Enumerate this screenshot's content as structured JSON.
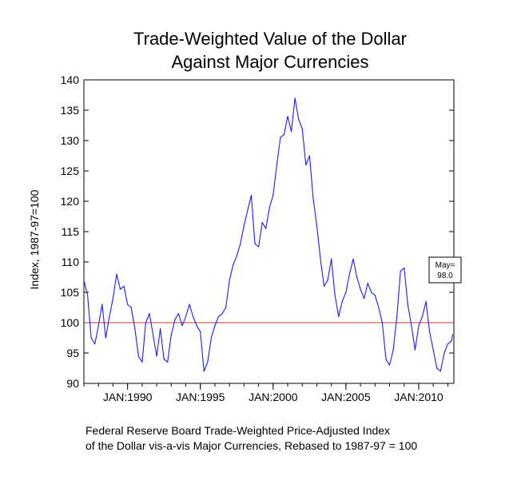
{
  "chart_data": {
    "type": "line",
    "title": "Trade-Weighted Value of the Dollar",
    "subtitle": "Against Major Currencies",
    "ylabel": "Index, 1987-97=100",
    "xlabel": "",
    "ylim": [
      90,
      140
    ],
    "yticks": [
      90,
      95,
      100,
      105,
      110,
      115,
      120,
      125,
      130,
      135,
      140
    ],
    "xlim": [
      "1987-01",
      "2012-06"
    ],
    "xticks": [
      {
        "label": "JAN:1990",
        "date": "1990-01"
      },
      {
        "label": "JAN:1995",
        "date": "1995-01"
      },
      {
        "label": "JAN:2000",
        "date": "2000-01"
      },
      {
        "label": "JAN:2005",
        "date": "2005-01"
      },
      {
        "label": "JAN:2010",
        "date": "2010-01"
      }
    ],
    "reference_line": {
      "value": 100,
      "color": "#c0392b"
    },
    "series": [
      {
        "color": "#1a1aff",
        "x": [
          "1987-01",
          "1987-04",
          "1987-07",
          "1987-10",
          "1988-01",
          "1988-04",
          "1988-07",
          "1988-10",
          "1989-01",
          "1989-04",
          "1989-07",
          "1989-10",
          "1990-01",
          "1990-04",
          "1990-07",
          "1990-10",
          "1991-01",
          "1991-04",
          "1991-07",
          "1991-10",
          "1992-01",
          "1992-04",
          "1992-07",
          "1992-10",
          "1993-01",
          "1993-04",
          "1993-07",
          "1993-10",
          "1994-01",
          "1994-04",
          "1994-07",
          "1994-10",
          "1995-01",
          "1995-04",
          "1995-07",
          "1995-10",
          "1996-01",
          "1996-04",
          "1996-07",
          "1996-10",
          "1997-01",
          "1997-04",
          "1997-07",
          "1997-10",
          "1998-01",
          "1998-04",
          "1998-07",
          "1998-10",
          "1999-01",
          "1999-04",
          "1999-07",
          "1999-10",
          "2000-01",
          "2000-04",
          "2000-07",
          "2000-10",
          "2001-01",
          "2001-04",
          "2001-07",
          "2001-10",
          "2002-01",
          "2002-04",
          "2002-07",
          "2002-10",
          "2003-01",
          "2003-04",
          "2003-07",
          "2003-10",
          "2004-01",
          "2004-04",
          "2004-07",
          "2004-10",
          "2005-01",
          "2005-04",
          "2005-07",
          "2005-10",
          "2006-01",
          "2006-04",
          "2006-07",
          "2006-10",
          "2007-01",
          "2007-04",
          "2007-07",
          "2007-10",
          "2008-01",
          "2008-04",
          "2008-07",
          "2008-10",
          "2009-01",
          "2009-04",
          "2009-07",
          "2009-10",
          "2010-01",
          "2010-04",
          "2010-07",
          "2010-10",
          "2011-01",
          "2011-04",
          "2011-07",
          "2011-10",
          "2012-01",
          "2012-04",
          "2012-05"
        ],
        "y": [
          107.0,
          104.5,
          97.5,
          96.5,
          99.5,
          103.0,
          97.5,
          101.0,
          104.0,
          108.0,
          105.5,
          106.0,
          103.0,
          102.5,
          99.0,
          94.5,
          93.5,
          100.0,
          101.5,
          98.0,
          94.5,
          99.0,
          94.0,
          93.5,
          98.0,
          100.5,
          101.5,
          99.5,
          101.0,
          103.0,
          101.0,
          99.5,
          98.5,
          92.0,
          93.5,
          97.5,
          99.5,
          101.0,
          101.5,
          102.5,
          107.0,
          109.5,
          111.0,
          113.0,
          116.0,
          118.5,
          121.0,
          113.0,
          112.5,
          116.5,
          115.5,
          119.0,
          121.0,
          126.0,
          130.5,
          131.0,
          134.0,
          131.5,
          137.0,
          133.5,
          132.0,
          126.0,
          127.5,
          120.5,
          116.0,
          110.5,
          106.0,
          107.0,
          110.5,
          104.5,
          101.0,
          103.5,
          105.0,
          108.0,
          110.5,
          107.5,
          105.5,
          104.0,
          106.5,
          105.0,
          104.5,
          102.5,
          100.0,
          94.0,
          93.0,
          95.5,
          101.0,
          108.5,
          109.0,
          103.0,
          99.5,
          95.5,
          99.5,
          101.0,
          103.5,
          98.5,
          95.5,
          92.5,
          92.0,
          95.0,
          96.5,
          97.0,
          98.0
        ]
      }
    ],
    "annotation": {
      "text_line1": "May=",
      "text_line2": "98.0",
      "placement": "right of last point"
    }
  },
  "footnote": {
    "line1": "Federal Reserve Board Trade-Weighted Price-Adjusted Index",
    "line2": "of the Dollar vis-a-vis Major Currencies, Rebased to 1987-97 = 100"
  },
  "colors": {
    "series": "#1a1aff",
    "reference": "#c0392b",
    "axis": "#000000"
  }
}
